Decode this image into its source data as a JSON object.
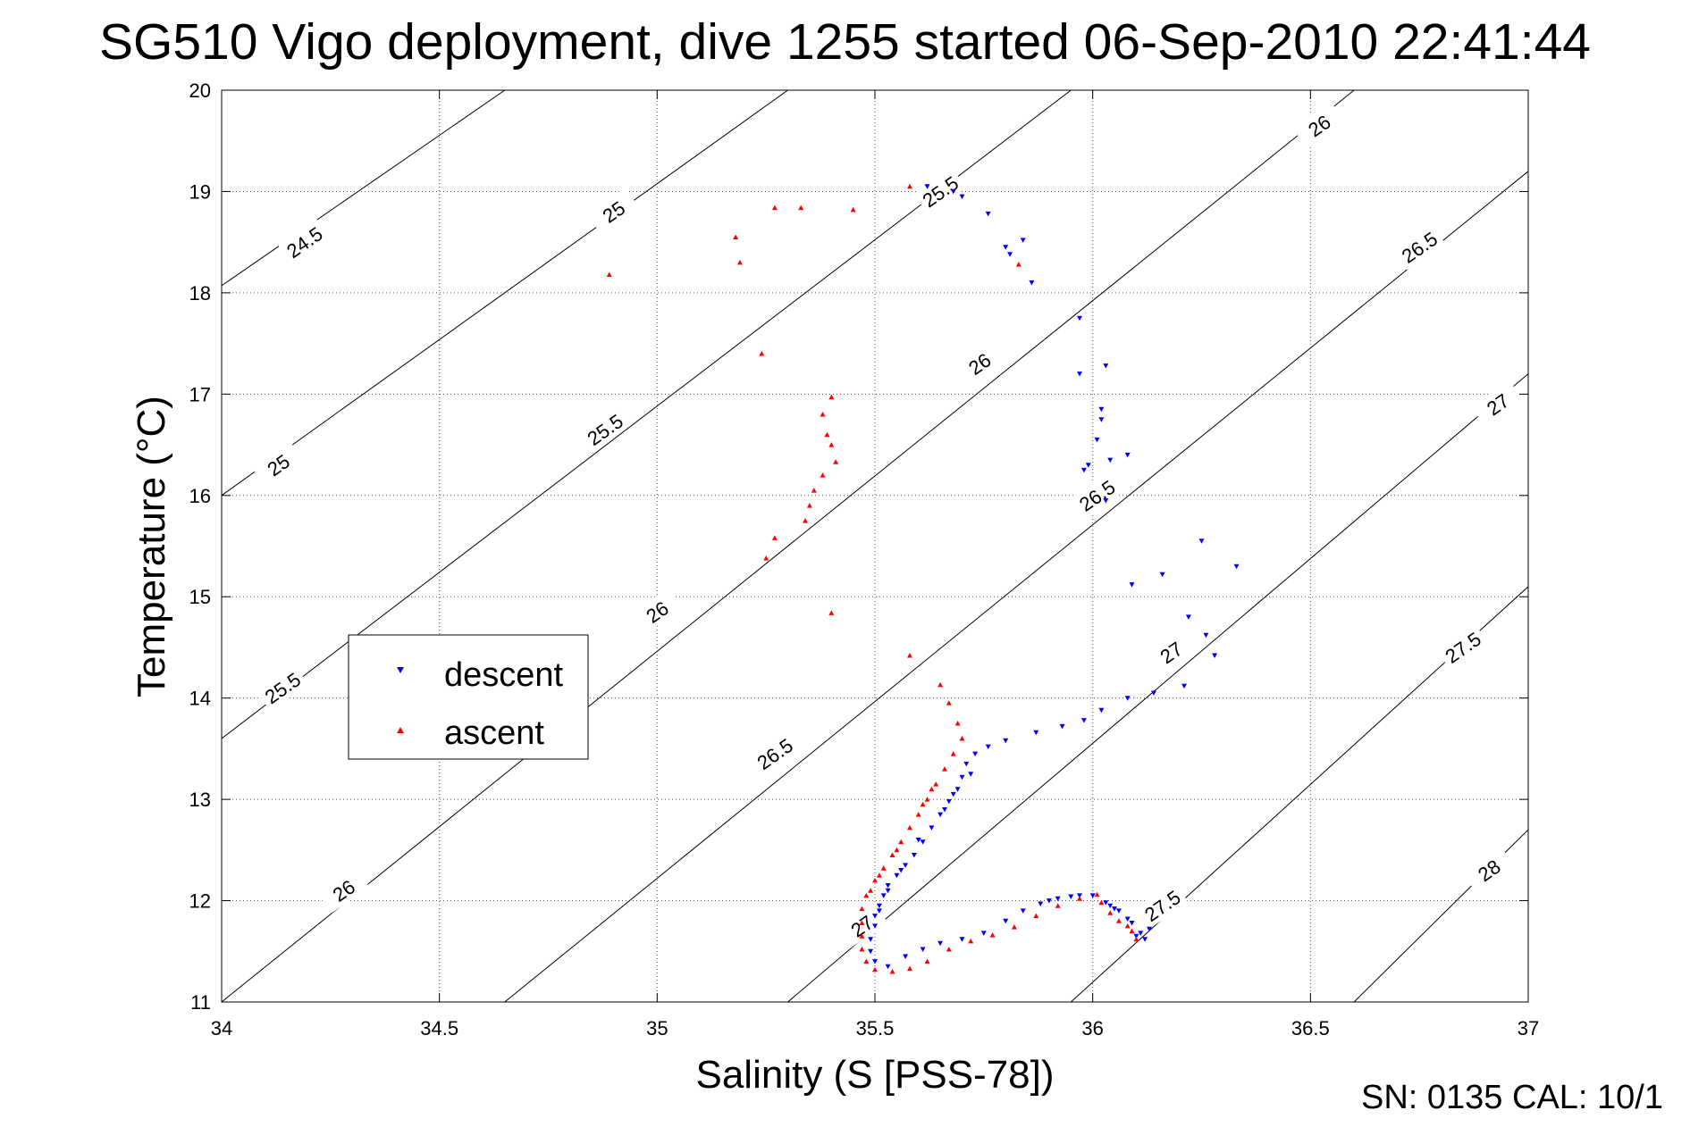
{
  "title": "SG510 Vigo deployment, dive 1255 started 06-Sep-2010 22:41:44",
  "footer": "SN: 0135  CAL: 10/1",
  "chart_data": {
    "type": "scatter",
    "xlabel": "Salinity (S [PSS-78])",
    "ylabel": "Temperature (°C)",
    "xlim": [
      34,
      37
    ],
    "ylim": [
      11,
      20
    ],
    "xticks": [
      34,
      34.5,
      35,
      35.5,
      36,
      36.5,
      37
    ],
    "xtick_labels": [
      "34",
      "34.5",
      "35",
      "35.5",
      "36",
      "36.5",
      "37"
    ],
    "yticks": [
      11,
      12,
      13,
      14,
      15,
      16,
      17,
      18,
      19,
      20
    ],
    "ytick_labels": [
      "11",
      "12",
      "13",
      "14",
      "15",
      "16",
      "17",
      "18",
      "19",
      "20"
    ],
    "grid": true,
    "legend_position": "left",
    "contours": [
      {
        "label": "24.5",
        "points": [
          [
            34.0,
            18.07
          ],
          [
            34.65,
            20.0
          ]
        ]
      },
      {
        "label": "25",
        "points": [
          [
            34.0,
            16.0
          ],
          [
            35.3,
            20.0
          ]
        ]
      },
      {
        "label": "25.5",
        "points": [
          [
            34.0,
            13.6
          ],
          [
            35.95,
            20.0
          ]
        ]
      },
      {
        "label": "26",
        "points": [
          [
            34.0,
            11.0
          ],
          [
            36.6,
            20.0
          ]
        ]
      },
      {
        "label": "26.5",
        "points": [
          [
            34.65,
            11.0
          ],
          [
            37.0,
            19.2
          ]
        ]
      },
      {
        "label": "27",
        "points": [
          [
            35.3,
            11.0
          ],
          [
            37.0,
            17.2
          ]
        ]
      },
      {
        "label": "27.5",
        "points": [
          [
            35.95,
            11.0
          ],
          [
            37.0,
            15.1
          ]
        ]
      },
      {
        "label": "28",
        "points": [
          [
            36.6,
            11.0
          ],
          [
            37.0,
            12.7
          ]
        ]
      }
    ],
    "contour_labels": [
      {
        "text": "24.5",
        "x": 34.19,
        "y": 18.5,
        "angle": -35
      },
      {
        "text": "25",
        "x": 34.9,
        "y": 18.8,
        "angle": -35
      },
      {
        "text": "25.5",
        "x": 35.65,
        "y": 19.0,
        "angle": -35
      },
      {
        "text": "26",
        "x": 36.52,
        "y": 19.65,
        "angle": -35
      },
      {
        "text": "26.5",
        "x": 36.75,
        "y": 18.45,
        "angle": -35
      },
      {
        "text": "25",
        "x": 34.13,
        "y": 16.3,
        "angle": -35
      },
      {
        "text": "25.5",
        "x": 34.88,
        "y": 16.65,
        "angle": -35
      },
      {
        "text": "26",
        "x": 35.74,
        "y": 17.3,
        "angle": -35
      },
      {
        "text": "26.5",
        "x": 36.01,
        "y": 16.0,
        "angle": -35
      },
      {
        "text": "27",
        "x": 36.93,
        "y": 16.9,
        "angle": -35
      },
      {
        "text": "25.5",
        "x": 34.14,
        "y": 14.1,
        "angle": -35
      },
      {
        "text": "26",
        "x": 35.0,
        "y": 14.85,
        "angle": -35
      },
      {
        "text": "27",
        "x": 36.18,
        "y": 14.45,
        "angle": -35
      },
      {
        "text": "27.5",
        "x": 36.85,
        "y": 14.5,
        "angle": -35
      },
      {
        "text": "26.5",
        "x": 35.27,
        "y": 13.45,
        "angle": -35
      },
      {
        "text": "26",
        "x": 34.28,
        "y": 12.1,
        "angle": -35
      },
      {
        "text": "27",
        "x": 35.47,
        "y": 11.75,
        "angle": -35
      },
      {
        "text": "27.5",
        "x": 36.16,
        "y": 11.95,
        "angle": -35
      },
      {
        "text": "28",
        "x": 36.91,
        "y": 12.3,
        "angle": -35
      }
    ],
    "series": [
      {
        "name": "descent",
        "marker": "triangle-down",
        "color": "#0000ff",
        "points": [
          [
            35.62,
            19.05
          ],
          [
            35.68,
            19.0
          ],
          [
            35.7,
            18.95
          ],
          [
            35.76,
            18.78
          ],
          [
            35.8,
            18.45
          ],
          [
            35.81,
            18.38
          ],
          [
            35.84,
            18.52
          ],
          [
            35.86,
            18.1
          ],
          [
            35.97,
            17.75
          ],
          [
            35.97,
            17.2
          ],
          [
            36.03,
            17.28
          ],
          [
            36.02,
            16.85
          ],
          [
            36.02,
            16.75
          ],
          [
            36.01,
            16.55
          ],
          [
            35.99,
            16.3
          ],
          [
            35.98,
            16.25
          ],
          [
            36.04,
            16.35
          ],
          [
            36.08,
            16.4
          ],
          [
            36.03,
            15.95
          ],
          [
            36.25,
            15.55
          ],
          [
            36.33,
            15.3
          ],
          [
            36.16,
            15.22
          ],
          [
            36.09,
            15.12
          ],
          [
            36.22,
            14.8
          ],
          [
            36.26,
            14.62
          ],
          [
            36.28,
            14.42
          ],
          [
            36.21,
            14.12
          ],
          [
            36.14,
            14.05
          ],
          [
            36.08,
            14.0
          ],
          [
            36.02,
            13.88
          ],
          [
            35.98,
            13.78
          ],
          [
            35.93,
            13.72
          ],
          [
            35.87,
            13.66
          ],
          [
            35.8,
            13.58
          ],
          [
            35.76,
            13.52
          ],
          [
            35.73,
            13.45
          ],
          [
            35.71,
            13.35
          ],
          [
            35.7,
            13.22
          ],
          [
            35.69,
            13.1
          ],
          [
            35.67,
            12.98
          ],
          [
            35.65,
            12.85
          ],
          [
            35.63,
            12.72
          ],
          [
            35.61,
            12.58
          ],
          [
            35.59,
            12.45
          ],
          [
            35.57,
            12.35
          ],
          [
            35.55,
            12.25
          ],
          [
            35.53,
            12.15
          ],
          [
            35.52,
            12.05
          ],
          [
            35.51,
            11.95
          ],
          [
            35.5,
            11.85
          ],
          [
            35.5,
            11.75
          ],
          [
            35.49,
            11.62
          ],
          [
            35.49,
            11.5
          ],
          [
            35.5,
            11.4
          ],
          [
            35.53,
            11.35
          ],
          [
            35.57,
            11.45
          ],
          [
            35.61,
            11.52
          ],
          [
            35.65,
            11.58
          ],
          [
            35.7,
            11.62
          ],
          [
            35.75,
            11.68
          ],
          [
            35.8,
            11.8
          ],
          [
            35.84,
            11.9
          ],
          [
            35.88,
            11.97
          ],
          [
            35.92,
            12.02
          ],
          [
            35.97,
            12.05
          ],
          [
            36.0,
            12.05
          ],
          [
            36.03,
            11.98
          ],
          [
            36.06,
            11.9
          ],
          [
            36.09,
            11.78
          ],
          [
            36.11,
            11.68
          ],
          [
            36.12,
            11.62
          ],
          [
            36.1,
            11.65
          ],
          [
            36.13,
            11.72
          ],
          [
            36.08,
            11.82
          ],
          [
            36.04,
            11.95
          ],
          [
            35.72,
            13.25
          ],
          [
            35.68,
            13.05
          ],
          [
            35.66,
            12.9
          ],
          [
            35.6,
            12.6
          ],
          [
            35.56,
            12.3
          ],
          [
            35.53,
            12.1
          ],
          [
            35.51,
            11.9
          ],
          [
            35.9,
            12.0
          ],
          [
            35.95,
            12.04
          ],
          [
            36.05,
            11.92
          ]
        ]
      },
      {
        "name": "ascent",
        "marker": "triangle-up",
        "color": "#ff0000",
        "points": [
          [
            34.89,
            18.18
          ],
          [
            35.18,
            18.55
          ],
          [
            35.19,
            18.3
          ],
          [
            35.27,
            18.84
          ],
          [
            35.33,
            18.84
          ],
          [
            35.45,
            18.82
          ],
          [
            35.58,
            19.05
          ],
          [
            35.83,
            18.28
          ],
          [
            35.24,
            17.4
          ],
          [
            35.4,
            16.97
          ],
          [
            35.38,
            16.8
          ],
          [
            35.39,
            16.6
          ],
          [
            35.4,
            16.5
          ],
          [
            35.41,
            16.33
          ],
          [
            35.38,
            16.2
          ],
          [
            35.36,
            16.05
          ],
          [
            35.35,
            15.9
          ],
          [
            35.34,
            15.75
          ],
          [
            35.27,
            15.58
          ],
          [
            35.25,
            15.38
          ],
          [
            35.4,
            14.84
          ],
          [
            35.58,
            14.42
          ],
          [
            35.65,
            14.13
          ],
          [
            35.67,
            13.95
          ],
          [
            35.69,
            13.75
          ],
          [
            35.7,
            13.6
          ],
          [
            35.68,
            13.45
          ],
          [
            35.66,
            13.3
          ],
          [
            35.64,
            13.15
          ],
          [
            35.62,
            13.0
          ],
          [
            35.6,
            12.85
          ],
          [
            35.58,
            12.72
          ],
          [
            35.56,
            12.58
          ],
          [
            35.54,
            12.45
          ],
          [
            35.52,
            12.32
          ],
          [
            35.5,
            12.2
          ],
          [
            35.48,
            12.05
          ],
          [
            35.47,
            11.92
          ],
          [
            35.47,
            11.78
          ],
          [
            35.47,
            11.65
          ],
          [
            35.47,
            11.52
          ],
          [
            35.48,
            11.4
          ],
          [
            35.5,
            11.32
          ],
          [
            35.54,
            11.3
          ],
          [
            35.58,
            11.33
          ],
          [
            35.62,
            11.4
          ],
          [
            35.67,
            11.52
          ],
          [
            35.72,
            11.6
          ],
          [
            35.77,
            11.66
          ],
          [
            35.82,
            11.74
          ],
          [
            35.87,
            11.85
          ],
          [
            35.92,
            11.95
          ],
          [
            35.97,
            12.02
          ],
          [
            36.01,
            12.06
          ],
          [
            36.02,
            11.98
          ],
          [
            36.04,
            11.88
          ],
          [
            36.06,
            11.8
          ],
          [
            36.08,
            11.75
          ],
          [
            36.09,
            11.7
          ],
          [
            36.1,
            11.62
          ],
          [
            35.63,
            13.1
          ],
          [
            35.61,
            12.95
          ],
          [
            35.55,
            12.5
          ],
          [
            35.51,
            12.25
          ],
          [
            35.49,
            12.1
          ]
        ]
      }
    ]
  }
}
